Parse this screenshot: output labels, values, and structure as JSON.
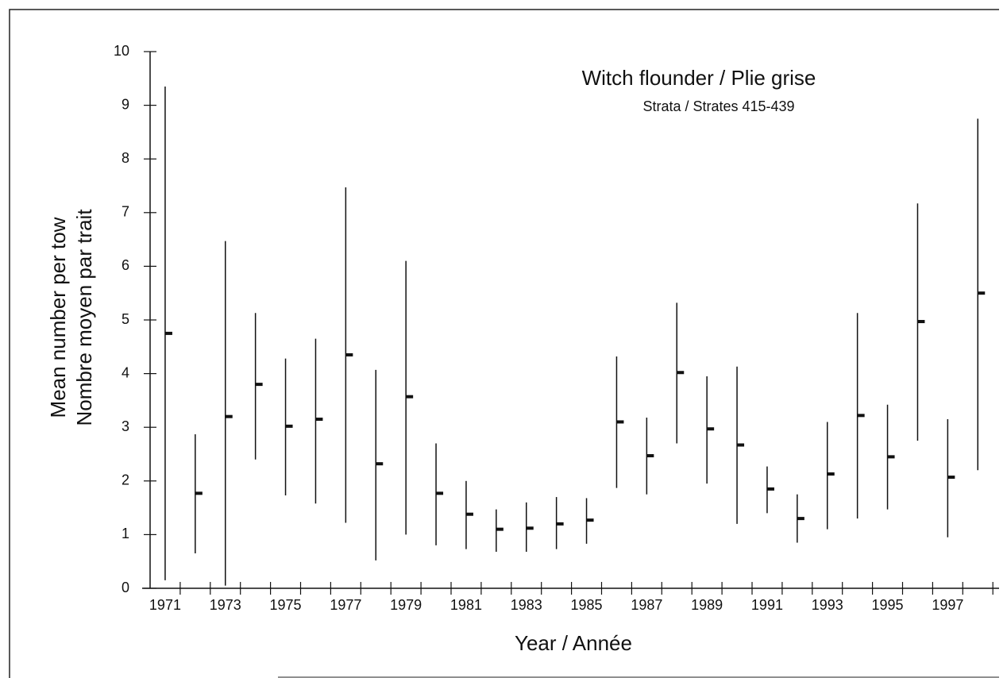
{
  "chart_data": {
    "type": "errorbar",
    "title": "Witch flounder / Plie grise",
    "subtitle": "Strata / Strates 415-439",
    "y_label": [
      "Mean number per tow",
      "Nombre moyen par trait"
    ],
    "x_label": "Year / Année",
    "categories": [
      "1971",
      null,
      "1973",
      null,
      "1975",
      null,
      "1977",
      null,
      "1979",
      null,
      "1981",
      null,
      "1983",
      null,
      "1985",
      null,
      "1987",
      null,
      "1989",
      null,
      "1991",
      null,
      "1993",
      null,
      "1995",
      null,
      "1997",
      null
    ],
    "series": [
      {
        "color": "#111111",
        "values": [
          4.75,
          1.77,
          3.2,
          3.8,
          3.02,
          3.15,
          4.35,
          2.32,
          3.57,
          1.77,
          1.38,
          1.1,
          1.12,
          1.2,
          1.27,
          3.1,
          2.47,
          4.02,
          2.97,
          2.67,
          1.85,
          1.3,
          2.13,
          3.22,
          2.45,
          4.97,
          2.07,
          5.5
        ],
        "low": [
          0.15,
          0.65,
          0.05,
          2.4,
          1.73,
          1.58,
          1.22,
          0.52,
          1.0,
          0.8,
          0.73,
          0.68,
          0.68,
          0.73,
          0.83,
          1.87,
          1.75,
          2.7,
          1.95,
          1.2,
          1.4,
          0.85,
          1.1,
          1.3,
          1.47,
          2.75,
          0.95,
          2.2
        ],
        "high": [
          9.35,
          2.87,
          6.47,
          5.13,
          4.28,
          4.65,
          7.47,
          4.07,
          6.1,
          2.7,
          2.0,
          1.47,
          1.6,
          1.7,
          1.68,
          4.32,
          3.18,
          5.32,
          3.95,
          4.13,
          2.27,
          1.75,
          3.1,
          5.13,
          3.42,
          7.17,
          3.15,
          8.75
        ]
      }
    ],
    "ylim": [
      0,
      10
    ],
    "yticks": [
      0,
      1,
      2,
      3,
      4,
      5,
      6,
      7,
      8,
      9,
      10
    ],
    "grid": false
  }
}
